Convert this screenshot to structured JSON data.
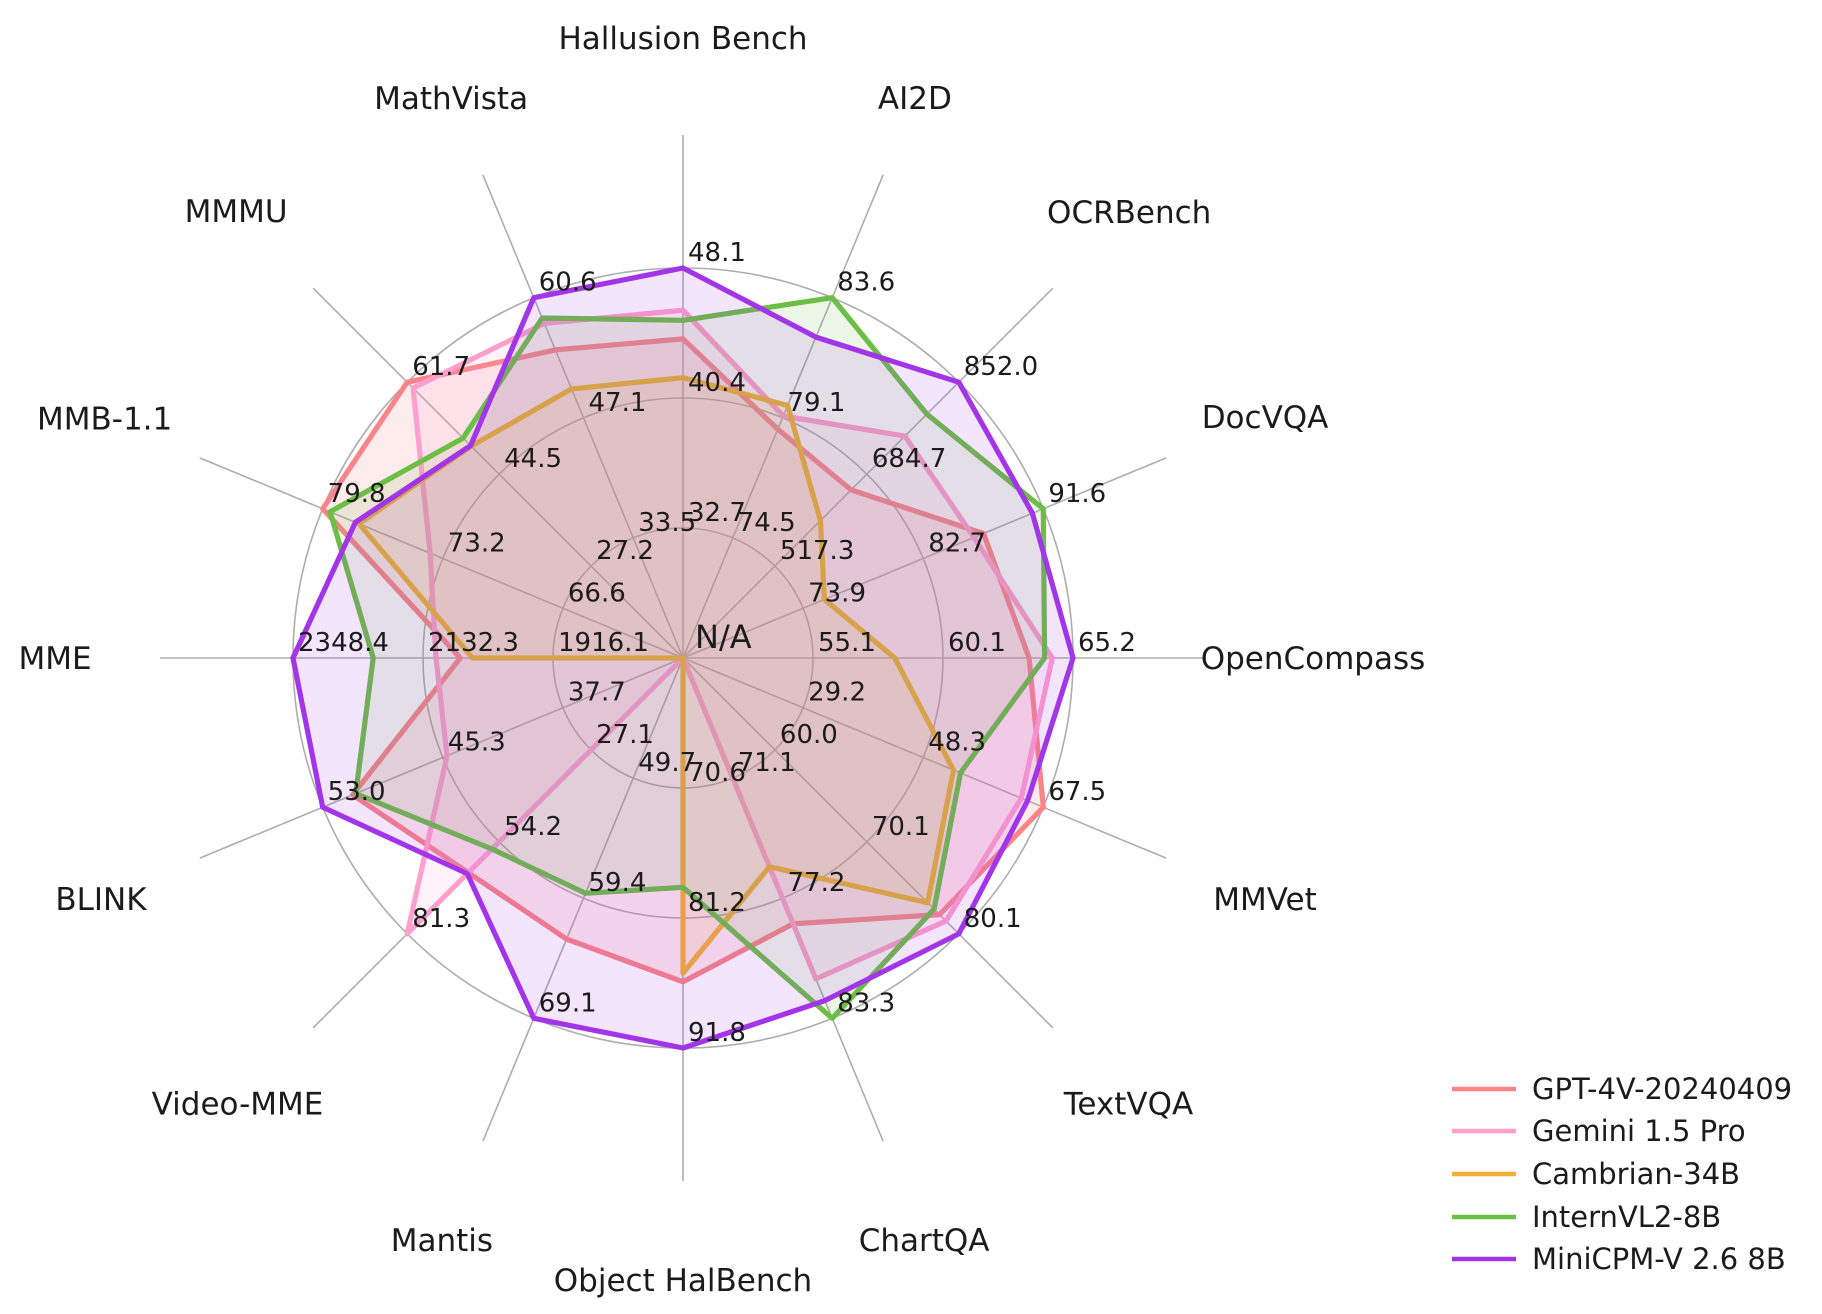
{
  "figure": {
    "kind": "radar-benchmark-figure",
    "center_label": "N/A",
    "background": "#FFFFFF"
  },
  "chart_data": {
    "type": "radar",
    "title": "",
    "grid": true,
    "rings": 3,
    "center_label": "N/A",
    "colors": {
      "grid": "#ADADAD",
      "text": "#1B1B1B",
      "background": "#FFFFFF"
    },
    "axes": [
      {
        "label": "Hallusion Bench",
        "ticks": [
          "32.7",
          "40.4",
          "48.1"
        ]
      },
      {
        "label": "AI2D",
        "ticks": [
          "74.5",
          "79.1",
          "83.6"
        ]
      },
      {
        "label": "OCRBench",
        "ticks": [
          "517.3",
          "684.7",
          "852.0"
        ]
      },
      {
        "label": "DocVQA",
        "ticks": [
          "73.9",
          "82.7",
          "91.6"
        ]
      },
      {
        "label": "OpenCompass",
        "ticks": [
          "55.1",
          "60.1",
          "65.2"
        ]
      },
      {
        "label": "MMVet",
        "ticks": [
          "29.2",
          "48.3",
          "67.5"
        ]
      },
      {
        "label": "TextVQA",
        "ticks": [
          "60.0",
          "70.1",
          "80.1"
        ]
      },
      {
        "label": "ChartQA",
        "ticks": [
          "71.1",
          "77.2",
          "83.3"
        ]
      },
      {
        "label": "Object HalBench",
        "ticks": [
          "70.6",
          "81.2",
          "91.8"
        ]
      },
      {
        "label": "Mantis",
        "ticks": [
          "49.7",
          "59.4",
          "69.1"
        ]
      },
      {
        "label": "Video-MME",
        "ticks": [
          "27.1",
          "54.2",
          "81.3"
        ]
      },
      {
        "label": "BLINK",
        "ticks": [
          "37.7",
          "45.3",
          "53.0"
        ]
      },
      {
        "label": "MME",
        "ticks": [
          "1916.1",
          "2132.3",
          "2348.4"
        ]
      },
      {
        "label": "MMB-1.1",
        "ticks": [
          "66.6",
          "73.2",
          "79.8"
        ]
      },
      {
        "label": "MMMU",
        "ticks": [
          "27.2",
          "44.5",
          "61.7"
        ]
      },
      {
        "label": "MathVista",
        "ticks": [
          "33.5",
          "47.1",
          "60.6"
        ]
      }
    ],
    "series": [
      {
        "name": "GPT-4V-20240409",
        "color": "#FA8488",
        "fill_opacity": 0.16,
        "values": [
          43.9,
          78.6,
          656.0,
          87.2,
          63.5,
          67.5,
          78.0,
          78.5,
          86.4,
          62.7,
          63.3,
          51.1,
          2070.2,
          79.8,
          61.7,
          54.7
        ]
      },
      {
        "name": "Gemini 1.5 Pro",
        "color": "#FF9FCE",
        "fill_opacity": 0.13,
        "values": [
          45.6,
          79.1,
          754.0,
          86.5,
          64.4,
          64.0,
          78.7,
          81.3,
          null,
          null,
          81.3,
          45.1,
          2110.6,
          73.9,
          60.6,
          57.7
        ]
      },
      {
        "name": "Cambrian-34B",
        "color": "#F2B136",
        "fill_opacity": 0.12,
        "values": [
          41.6,
          79.5,
          600.0,
          75.5,
          58.3,
          53.2,
          76.7,
          75.6,
          85.7,
          null,
          null,
          null,
          2049.9,
          77.8,
          49.7,
          50.3
        ]
      },
      {
        "name": "InternVL2-8B",
        "color": "#6CBE45",
        "fill_opacity": 0.12,
        "values": [
          45.0,
          83.6,
          794.0,
          91.6,
          64.1,
          54.3,
          77.4,
          83.3,
          78.7,
          59.0,
          56.3,
          50.9,
          2215.1,
          79.4,
          51.2,
          58.3
        ]
      },
      {
        "name": "MiniCPM-V 2.6 8B",
        "color": "#A335E8",
        "fill_opacity": 0.13,
        "values": [
          48.1,
          82.1,
          852.0,
          90.8,
          65.2,
          65.0,
          80.1,
          82.4,
          91.8,
          69.1,
          63.6,
          53.0,
          2348.4,
          78.0,
          49.8,
          60.6
        ]
      }
    ],
    "legend_position": "lower right",
    "note_null_values": "null means N/A: the polygon drops to the chart center for that axis"
  }
}
